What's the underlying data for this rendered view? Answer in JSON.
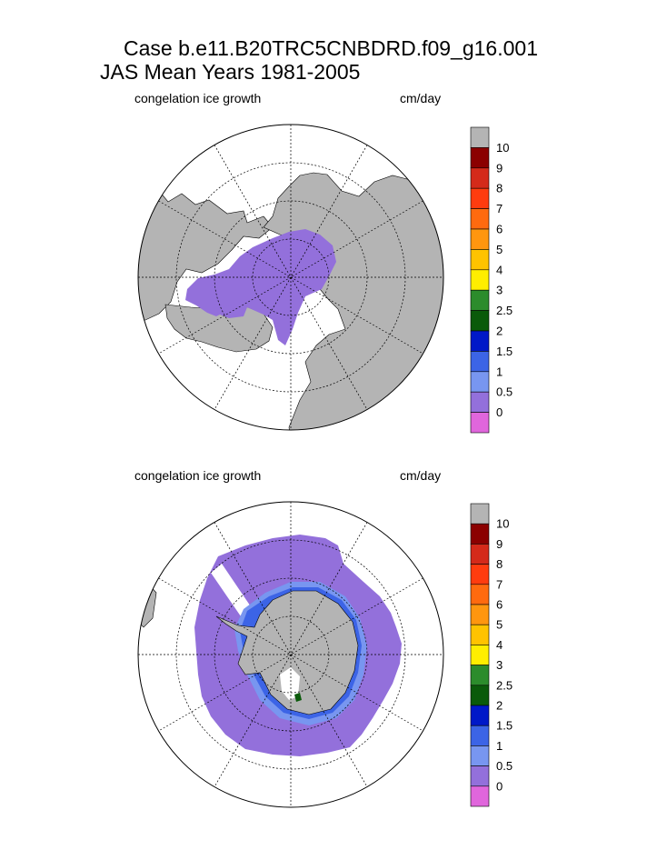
{
  "titles": {
    "line1": "Case b.e11.B20TRC5CNBDRD.f09_g16.001",
    "line2": "JAS Mean   Years 1981-2005"
  },
  "panels": [
    {
      "variable": "congelation ice growth",
      "units": "cm/day",
      "hemisphere": "north"
    },
    {
      "variable": "congelation ice growth",
      "units": "cm/day",
      "hemisphere": "south"
    }
  ],
  "colorbar": {
    "levels": [
      "10",
      "9",
      "8",
      "7",
      "6",
      "5",
      "4",
      "3",
      "2.5",
      "2",
      "1.5",
      "1",
      "0.5",
      "0"
    ],
    "colors": [
      "#b4b4b4",
      "#8b0000",
      "#d42a1a",
      "#ff3c0f",
      "#ff6a0f",
      "#ff960f",
      "#ffc300",
      "#ffee00",
      "#2c8c2c",
      "#0a5a0a",
      "#0018c8",
      "#3c64e6",
      "#7896f0",
      "#9370db",
      "#e066dc"
    ]
  },
  "colors": {
    "land": "#b4b4b4",
    "ice_0_to_0_5": "#9370db",
    "ice_0_5_to_1": "#7896f0",
    "ice_1_to_1_5": "#3c64e6",
    "ice_2_to_2_5": "#0a5a0a"
  },
  "chart_data": [
    {
      "type": "heatmap",
      "projection": "polar stereographic (north)",
      "title": "congelation ice growth",
      "units": "cm/day",
      "summary": "Arctic basin almost entirely in the 0–0.5 cm/day class; land masked grey; open ocean white",
      "levels": [
        0,
        0.5,
        1,
        1.5,
        2,
        2.5,
        3,
        4,
        5,
        6,
        7,
        8,
        9,
        10
      ]
    },
    {
      "type": "heatmap",
      "projection": "polar stereographic (south)",
      "title": "congelation ice growth",
      "units": "cm/day",
      "summary": "Southern Ocean sea-ice ring mostly 0–0.5 cm/day, with a 0.5–1.5 cm/day band along the Antarctic coast and isolated 2–2.5 cm/day cells in the Weddell/Ross embayments",
      "levels": [
        0,
        0.5,
        1,
        1.5,
        2,
        2.5,
        3,
        4,
        5,
        6,
        7,
        8,
        9,
        10
      ]
    }
  ]
}
